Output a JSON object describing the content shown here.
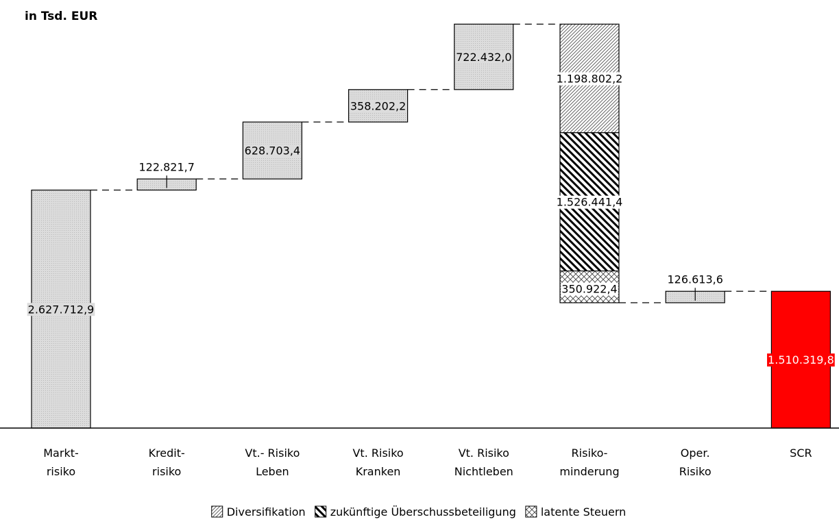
{
  "chart_data": {
    "type": "waterfall",
    "unit_label": "in Tsd. EUR",
    "categories": [
      {
        "lines": [
          "Markt-",
          "risiko"
        ]
      },
      {
        "lines": [
          "Kredit-",
          "risiko"
        ]
      },
      {
        "lines": [
          "Vt.- Risiko",
          "Leben"
        ]
      },
      {
        "lines": [
          "Vt. Risiko",
          "Kranken"
        ]
      },
      {
        "lines": [
          "Vt. Risiko",
          "Nichtleben"
        ]
      },
      {
        "lines": [
          "Risiko-",
          "minderung"
        ]
      },
      {
        "lines": [
          "Oper.",
          "Risiko"
        ]
      },
      {
        "lines": [
          "SCR"
        ]
      }
    ],
    "steps": [
      {
        "category": 0,
        "kind": "increase",
        "value": 2627712.9,
        "label": "2.627.712,9"
      },
      {
        "category": 1,
        "kind": "increase",
        "value": 122821.7,
        "label": "122.821,7"
      },
      {
        "category": 2,
        "kind": "increase",
        "value": 628703.4,
        "label": "628.703,4"
      },
      {
        "category": 3,
        "kind": "increase",
        "value": 358202.2,
        "label": "358.202,2"
      },
      {
        "category": 4,
        "kind": "increase",
        "value": 722432.0,
        "label": "722.432,0"
      },
      {
        "category": 5,
        "kind": "decrease",
        "series": "Diversifikation",
        "value": 1198802.2,
        "label": "1.198.802,2"
      },
      {
        "category": 5,
        "kind": "decrease",
        "series": "zukünftige Überschussbeteiligung",
        "value": 1526441.4,
        "label": "1.526.441,4"
      },
      {
        "category": 5,
        "kind": "decrease",
        "series": "latente Steuern",
        "value": 350922.4,
        "label": "350.922,4"
      },
      {
        "category": 6,
        "kind": "increase",
        "value": 126613.6,
        "label": "126.613,6"
      },
      {
        "category": 7,
        "kind": "total",
        "value": 1510319.8,
        "label": "1.510.319,8"
      }
    ],
    "legend": [
      {
        "name": "Diversifikation",
        "pattern": "diag-light"
      },
      {
        "name": "zukünftige Überschussbeteiligung",
        "pattern": "diag-heavy"
      },
      {
        "name": "latente Steuern",
        "pattern": "crosshatch"
      }
    ],
    "legend_position": "bottom",
    "ylim": [
      0,
      4560000
    ],
    "grid": false,
    "colors": {
      "bar_fill": "#d9d9d9",
      "bar_stroke": "#000000",
      "total_fill": "#ff0000",
      "total_label_text": "#ffffff"
    }
  }
}
